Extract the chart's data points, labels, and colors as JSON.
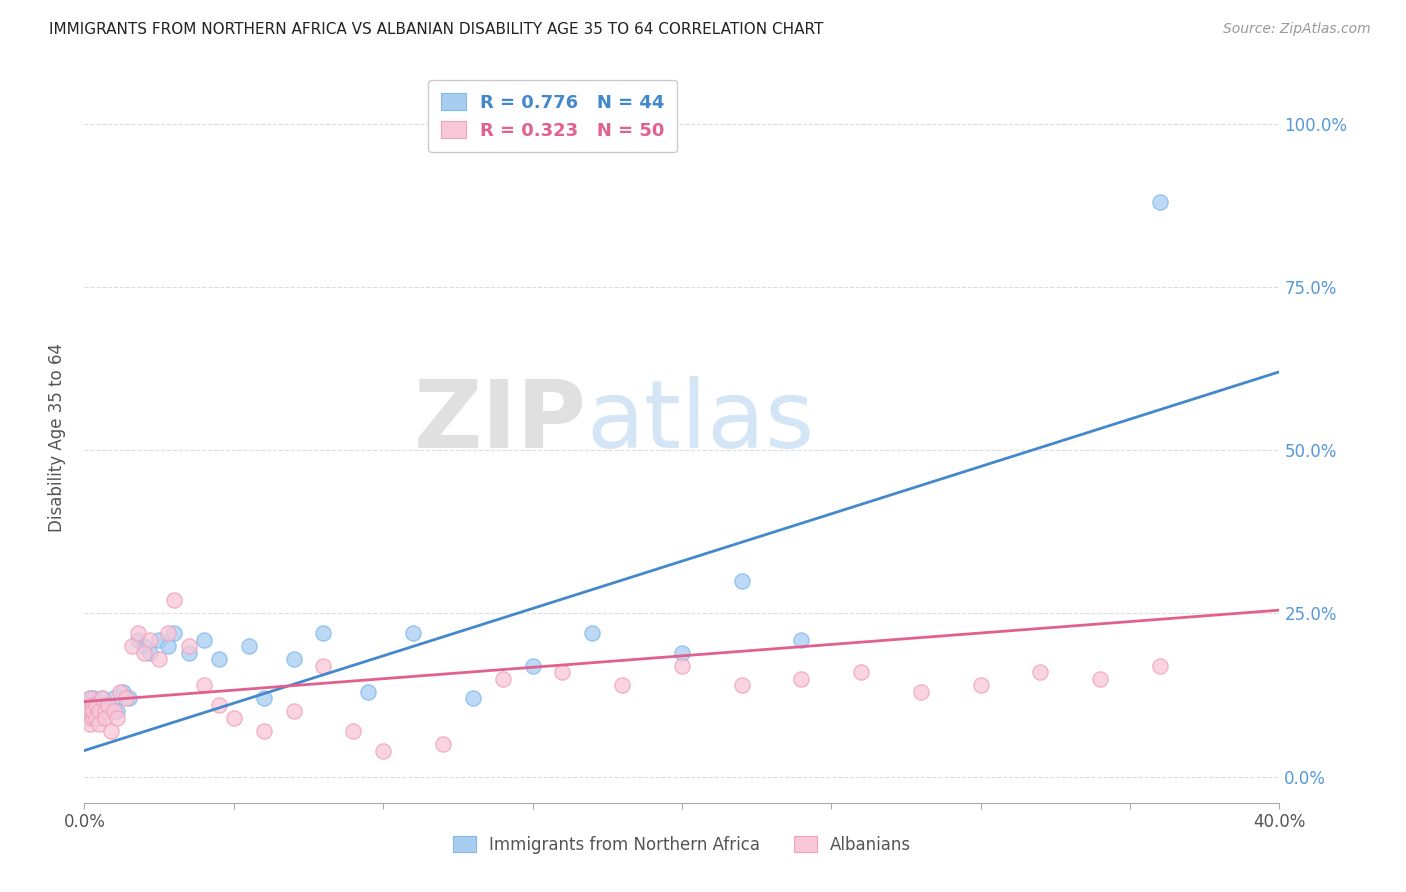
{
  "title": "IMMIGRANTS FROM NORTHERN AFRICA VS ALBANIAN DISABILITY AGE 35 TO 64 CORRELATION CHART",
  "source": "Source: ZipAtlas.com",
  "ylabel": "Disability Age 35 to 64",
  "xlim": [
    0.0,
    0.4
  ],
  "ylim": [
    -0.04,
    1.08
  ],
  "yticks": [
    0.0,
    0.25,
    0.5,
    0.75,
    1.0
  ],
  "ytick_labels": [
    "0.0%",
    "25.0%",
    "50.0%",
    "75.0%",
    "100.0%"
  ],
  "xticks": [
    0.0,
    0.05,
    0.1,
    0.15,
    0.2,
    0.25,
    0.3,
    0.35,
    0.4
  ],
  "xtick_labels": [
    "0.0%",
    "",
    "",
    "",
    "",
    "",
    "",
    "",
    "40.0%"
  ],
  "blue_color": "#A8CDEF",
  "blue_edge_color": "#7EB8F0",
  "pink_color": "#F9C8D8",
  "pink_edge_color": "#F0A0BC",
  "blue_line_color": "#4488CC",
  "pink_line_color": "#E06090",
  "legend_blue_r": "R = 0.776",
  "legend_blue_n": "N = 44",
  "legend_pink_r": "R = 0.323",
  "legend_pink_n": "N = 50",
  "blue_scatter_x": [
    0.001,
    0.001,
    0.002,
    0.002,
    0.002,
    0.003,
    0.003,
    0.003,
    0.004,
    0.004,
    0.005,
    0.005,
    0.006,
    0.006,
    0.007,
    0.007,
    0.008,
    0.009,
    0.01,
    0.011,
    0.013,
    0.015,
    0.018,
    0.02,
    0.022,
    0.025,
    0.028,
    0.03,
    0.035,
    0.04,
    0.045,
    0.055,
    0.06,
    0.07,
    0.08,
    0.095,
    0.11,
    0.13,
    0.15,
    0.17,
    0.2,
    0.22,
    0.24,
    0.36
  ],
  "blue_scatter_y": [
    0.1,
    0.11,
    0.09,
    0.12,
    0.1,
    0.11,
    0.1,
    0.12,
    0.1,
    0.11,
    0.09,
    0.11,
    0.1,
    0.12,
    0.11,
    0.1,
    0.11,
    0.1,
    0.12,
    0.1,
    0.13,
    0.12,
    0.21,
    0.2,
    0.19,
    0.21,
    0.2,
    0.22,
    0.19,
    0.21,
    0.18,
    0.2,
    0.12,
    0.18,
    0.22,
    0.13,
    0.22,
    0.12,
    0.17,
    0.22,
    0.19,
    0.3,
    0.21,
    0.88
  ],
  "pink_scatter_x": [
    0.001,
    0.001,
    0.002,
    0.002,
    0.002,
    0.003,
    0.003,
    0.003,
    0.004,
    0.004,
    0.005,
    0.005,
    0.006,
    0.007,
    0.007,
    0.008,
    0.009,
    0.01,
    0.011,
    0.012,
    0.014,
    0.016,
    0.018,
    0.02,
    0.022,
    0.025,
    0.028,
    0.03,
    0.035,
    0.04,
    0.045,
    0.05,
    0.06,
    0.07,
    0.08,
    0.09,
    0.1,
    0.12,
    0.14,
    0.16,
    0.18,
    0.2,
    0.22,
    0.24,
    0.26,
    0.28,
    0.3,
    0.32,
    0.34,
    0.36
  ],
  "pink_scatter_y": [
    0.09,
    0.11,
    0.08,
    0.1,
    0.12,
    0.09,
    0.11,
    0.1,
    0.09,
    0.11,
    0.1,
    0.08,
    0.12,
    0.1,
    0.09,
    0.11,
    0.07,
    0.1,
    0.09,
    0.13,
    0.12,
    0.2,
    0.22,
    0.19,
    0.21,
    0.18,
    0.22,
    0.27,
    0.2,
    0.14,
    0.11,
    0.09,
    0.07,
    0.1,
    0.17,
    0.07,
    0.04,
    0.05,
    0.15,
    0.16,
    0.14,
    0.17,
    0.14,
    0.15,
    0.16,
    0.13,
    0.14,
    0.16,
    0.15,
    0.17
  ],
  "blue_trend_x": [
    0.0,
    0.4
  ],
  "blue_trend_y": [
    0.04,
    0.62
  ],
  "pink_trend_x": [
    0.0,
    0.4
  ],
  "pink_trend_y": [
    0.115,
    0.255
  ],
  "watermark_zip": "ZIP",
  "watermark_atlas": "atlas",
  "background_color": "#ffffff",
  "grid_color": "#dddddd"
}
